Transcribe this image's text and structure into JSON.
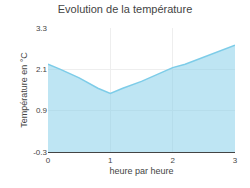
{
  "chart_data": {
    "type": "area",
    "title": "Evolution de la température",
    "xlabel": "heure par heure",
    "ylabel": "Température en °C",
    "x": [
      0,
      0.2,
      0.5,
      0.8,
      1.0,
      1.2,
      1.5,
      1.8,
      2.0,
      2.2,
      2.5,
      2.8,
      3.0
    ],
    "values": [
      2.25,
      2.1,
      1.85,
      1.55,
      1.4,
      1.55,
      1.75,
      1.98,
      2.15,
      2.25,
      2.45,
      2.65,
      2.8
    ],
    "color": "#7dcce8",
    "xlim": [
      0,
      3
    ],
    "ylim": [
      -0.3,
      3.3
    ],
    "xticks": [
      0,
      1,
      2,
      3
    ],
    "yticks": [
      -0.3,
      0.9,
      2.1,
      3.3
    ],
    "grid": true
  }
}
